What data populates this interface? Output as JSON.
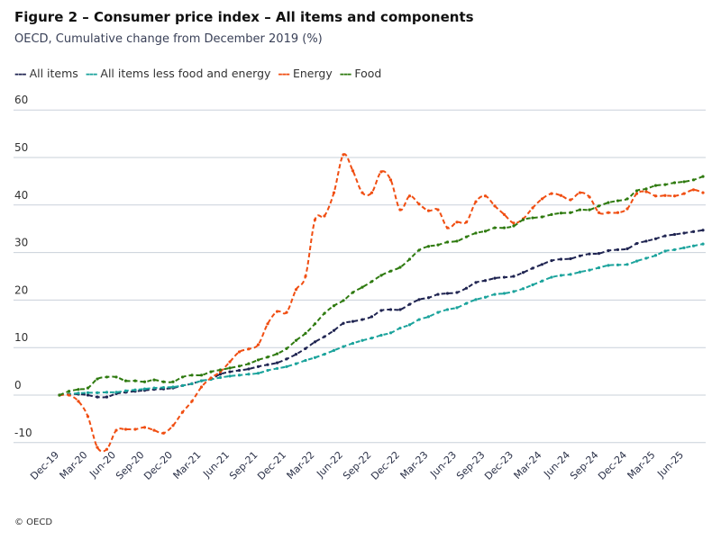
{
  "title": "Figure 2 – Consumer price index – All items and components",
  "subtitle": "OECD, Cumulative change from December 2019 (%)",
  "footer": "© OECD",
  "chart_data": {
    "type": "line",
    "title": "Figure 2 – Consumer price index – All items and components",
    "subtitle": "OECD, Cumulative change from December 2019 (%)",
    "ylim": [
      -10,
      60
    ],
    "yticks": [
      60,
      50,
      40,
      30,
      20,
      10,
      0,
      -10
    ],
    "grid": true,
    "legend": "top-left",
    "xticks": [
      "Dec-19",
      "Mar-20",
      "Jun-20",
      "Sep-20",
      "Dec-20",
      "Mar-21",
      "Jun-21",
      "Sep-21",
      "Dec-21",
      "Mar-22",
      "Jun-22",
      "Sep-22",
      "Dec-22",
      "Mar-23",
      "Jun-23",
      "Sep-23",
      "Dec-23",
      "Mar-24",
      "Jun-24",
      "Sep-24",
      "Dec-24",
      "Mar-25",
      "Jun-25"
    ],
    "x": [
      "Dec-19",
      "Jan-20",
      "Feb-20",
      "Mar-20",
      "Apr-20",
      "May-20",
      "Jun-20",
      "Jul-20",
      "Aug-20",
      "Sep-20",
      "Oct-20",
      "Nov-20",
      "Dec-20",
      "Jan-21",
      "Feb-21",
      "Mar-21",
      "Apr-21",
      "May-21",
      "Jun-21",
      "Jul-21",
      "Aug-21",
      "Sep-21",
      "Oct-21",
      "Nov-21",
      "Dec-21",
      "Jan-22",
      "Feb-22",
      "Mar-22",
      "Apr-22",
      "May-22",
      "Jun-22",
      "Jul-22",
      "Aug-22",
      "Sep-22",
      "Oct-22",
      "Nov-22",
      "Dec-22",
      "Jan-23",
      "Feb-23",
      "Mar-23",
      "Apr-23",
      "May-23",
      "Jun-23",
      "Jul-23",
      "Aug-23",
      "Sep-23",
      "Oct-23",
      "Nov-23",
      "Dec-23",
      "Jan-24",
      "Feb-24",
      "Mar-24",
      "Apr-24",
      "May-24",
      "Jun-24",
      "Jul-24",
      "Aug-24",
      "Sep-24",
      "Oct-24",
      "Nov-24",
      "Dec-24",
      "Jan-25",
      "Feb-25",
      "Mar-25",
      "Apr-25",
      "May-25",
      "Jun-25",
      "Jul-25",
      "Aug-25"
    ],
    "series": [
      {
        "name": "All items",
        "color": "#1f2451",
        "values": [
          0,
          0.2,
          0.2,
          0,
          -0.4,
          -0.4,
          0.3,
          0.6,
          0.8,
          1,
          1.2,
          1.3,
          1.5,
          2,
          2.4,
          3,
          3.4,
          4.4,
          4.9,
          5.2,
          5.5,
          6,
          6.4,
          6.8,
          7.6,
          8.6,
          9.8,
          11.2,
          12.3,
          13.6,
          15.1,
          15.5,
          15.9,
          16.5,
          17.8,
          18,
          18,
          19.1,
          20.1,
          20.5,
          21.2,
          21.4,
          21.6,
          22.5,
          23.7,
          24.1,
          24.6,
          24.8,
          25,
          25.8,
          26.7,
          27.5,
          28.3,
          28.6,
          28.7,
          29.3,
          29.7,
          29.8,
          30.4,
          30.6,
          30.8,
          31.9,
          32.4,
          32.9,
          33.5,
          33.8,
          34.1,
          34.4,
          34.7
        ]
      },
      {
        "name": "All items less food and energy",
        "color": "#1ba39c",
        "values": [
          0,
          0.2,
          0.4,
          0.5,
          0.5,
          0.6,
          0.6,
          0.9,
          1.1,
          1.3,
          1.5,
          1.6,
          1.7,
          2,
          2.4,
          3,
          3.3,
          3.7,
          4,
          4.2,
          4.4,
          4.6,
          5.2,
          5.6,
          6,
          6.6,
          7.3,
          7.9,
          8.6,
          9.4,
          10.2,
          10.9,
          11.5,
          12,
          12.6,
          13.1,
          14.1,
          14.8,
          15.9,
          16.5,
          17.4,
          18,
          18.4,
          19.3,
          20.1,
          20.6,
          21.2,
          21.4,
          21.8,
          22.4,
          23.2,
          24,
          24.8,
          25.2,
          25.4,
          25.9,
          26.3,
          26.8,
          27.3,
          27.4,
          27.5,
          28.2,
          28.8,
          29.4,
          30.3,
          30.6,
          31,
          31.4,
          31.8
        ]
      },
      {
        "name": "Energy",
        "color": "#f04e12",
        "values": [
          0,
          0,
          -1.3,
          -4.5,
          -11,
          -11.4,
          -7.4,
          -7.2,
          -7.2,
          -6.8,
          -7.4,
          -8,
          -6.4,
          -3.6,
          -1.3,
          1.7,
          3.6,
          4.9,
          7,
          9.1,
          9.7,
          10.6,
          15,
          17.6,
          17.4,
          22.2,
          25,
          36.9,
          37.7,
          42.6,
          50.6,
          47.2,
          42.6,
          42.6,
          47,
          45.3,
          39,
          41.9,
          40.2,
          38.8,
          39,
          35.2,
          36.4,
          36.4,
          40.7,
          41.9,
          39.8,
          38,
          36.2,
          37.1,
          39.4,
          41.3,
          42.4,
          42,
          41.1,
          42.6,
          41.7,
          38.4,
          38.4,
          38.4,
          39.2,
          42.4,
          42.8,
          41.9,
          42,
          41.9,
          42.4,
          43.2,
          42.6
        ]
      },
      {
        "name": "Food",
        "color": "#2e7a0f",
        "values": [
          0,
          0.8,
          1.2,
          1.5,
          3.4,
          3.8,
          3.8,
          3,
          3,
          2.8,
          3.2,
          2.8,
          2.8,
          3.8,
          4.2,
          4.2,
          4.9,
          5.3,
          5.7,
          6.1,
          6.6,
          7.4,
          8,
          8.7,
          9.8,
          11.5,
          13,
          15,
          17.2,
          18.8,
          19.9,
          21.6,
          22.7,
          23.9,
          25.2,
          26.1,
          26.9,
          28.6,
          30.5,
          31.3,
          31.6,
          32.2,
          32.4,
          33.3,
          34.1,
          34.5,
          35.2,
          35.2,
          35.6,
          36.9,
          37.3,
          37.5,
          38,
          38.3,
          38.4,
          39,
          39,
          39.8,
          40.5,
          40.9,
          41.3,
          43,
          43.4,
          44.1,
          44.3,
          44.7,
          44.9,
          45.3,
          46
        ]
      }
    ]
  }
}
